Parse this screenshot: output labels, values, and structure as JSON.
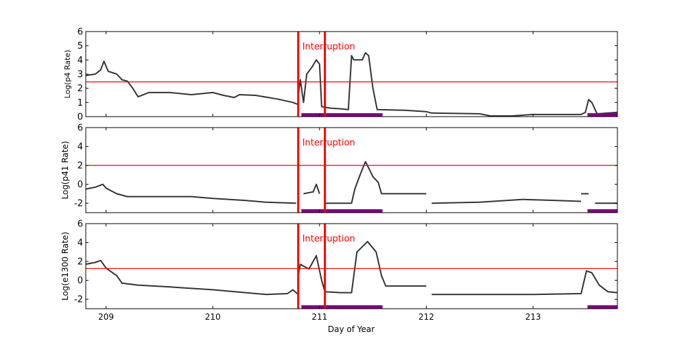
{
  "chart_data": {
    "type": "line",
    "xlabel": "Day of Year",
    "xlim": [
      208.81,
      213.79
    ],
    "xticks": [
      209,
      210,
      211,
      212,
      213
    ],
    "interruption": {
      "label": "Interruption",
      "x": [
        210.8,
        211.05
      ],
      "color": "#ff0000"
    },
    "bands": [
      [
        210.83,
        211.59
      ],
      [
        213.51,
        213.79
      ]
    ],
    "band_color": "#800080",
    "line_color": "#000000",
    "threshold_color": "#ff0000",
    "panels": [
      {
        "ylabel": "Log(p4 Rate)",
        "ylim": [
          0,
          6
        ],
        "yticks": [
          0,
          1,
          2,
          3,
          4,
          5,
          6
        ],
        "threshold": 2.45,
        "segments": [
          [
            [
              208.81,
              2.9
            ],
            [
              208.9,
              3.0
            ],
            [
              208.95,
              3.3
            ],
            [
              208.98,
              3.9
            ],
            [
              209.02,
              3.2
            ],
            [
              209.1,
              3.0
            ],
            [
              209.15,
              2.6
            ],
            [
              209.2,
              2.5
            ],
            [
              209.25,
              2.0
            ],
            [
              209.3,
              1.4
            ],
            [
              209.4,
              1.7
            ],
            [
              209.6,
              1.7
            ],
            [
              209.8,
              1.55
            ],
            [
              210.0,
              1.7
            ],
            [
              210.1,
              1.5
            ],
            [
              210.2,
              1.35
            ],
            [
              210.25,
              1.55
            ],
            [
              210.4,
              1.5
            ],
            [
              210.6,
              1.25
            ],
            [
              210.75,
              1.0
            ],
            [
              210.8,
              0.85
            ]
          ],
          [
            [
              210.8,
              1.5
            ],
            [
              210.82,
              2.6
            ],
            [
              210.85,
              1.0
            ],
            [
              210.88,
              3.0
            ],
            [
              210.93,
              3.5
            ],
            [
              210.97,
              4.0
            ],
            [
              211.0,
              3.7
            ],
            [
              211.02,
              0.7
            ],
            [
              211.1,
              0.6
            ],
            [
              211.2,
              0.55
            ],
            [
              211.27,
              0.5
            ],
            [
              211.3,
              4.3
            ],
            [
              211.32,
              4.0
            ],
            [
              211.4,
              4.0
            ],
            [
              211.43,
              4.5
            ],
            [
              211.46,
              4.3
            ],
            [
              211.5,
              2.0
            ],
            [
              211.54,
              0.5
            ],
            [
              211.8,
              0.45
            ],
            [
              212.0,
              0.35
            ],
            [
              212.05,
              0.25
            ],
            [
              212.5,
              0.2
            ],
            [
              212.6,
              0.05
            ],
            [
              212.8,
              0.05
            ],
            [
              213.0,
              0.15
            ],
            [
              213.45,
              0.15
            ],
            [
              213.49,
              0.3
            ],
            [
              213.52,
              1.2
            ],
            [
              213.55,
              1.0
            ],
            [
              213.6,
              0.2
            ],
            [
              213.79,
              0.3
            ]
          ]
        ]
      },
      {
        "ylabel": "Log(p41 Rate)",
        "ylim": [
          -3,
          6
        ],
        "yticks": [
          -2,
          0,
          2,
          4,
          6
        ],
        "threshold": 2,
        "segments": [
          [
            [
              208.81,
              -0.5
            ],
            [
              208.9,
              -0.3
            ],
            [
              208.97,
              0.0
            ],
            [
              209.0,
              -0.4
            ],
            [
              209.1,
              -1.0
            ],
            [
              209.2,
              -1.3
            ],
            [
              209.5,
              -1.3
            ],
            [
              209.8,
              -1.3
            ],
            [
              210.0,
              -1.5
            ],
            [
              210.3,
              -1.7
            ],
            [
              210.5,
              -1.9
            ],
            [
              210.78,
              -2.0
            ]
          ],
          [
            [
              210.85,
              -1.0
            ],
            [
              210.94,
              -0.8
            ],
            [
              210.97,
              0.0
            ],
            [
              211.0,
              -1.0
            ]
          ],
          [
            [
              211.05,
              -2.0
            ],
            [
              211.3,
              -2.0
            ],
            [
              211.33,
              -0.5
            ],
            [
              211.38,
              1.0
            ],
            [
              211.43,
              2.4
            ],
            [
              211.47,
              1.5
            ],
            [
              211.5,
              0.8
            ],
            [
              211.55,
              0.2
            ],
            [
              211.58,
              -1.0
            ],
            [
              212.0,
              -1.0
            ]
          ],
          [
            [
              212.05,
              -2.0
            ],
            [
              212.5,
              -1.9
            ],
            [
              212.9,
              -1.6
            ],
            [
              213.2,
              -1.7
            ],
            [
              213.45,
              -1.8
            ]
          ],
          [
            [
              213.45,
              -1.0
            ],
            [
              213.52,
              -1.0
            ]
          ],
          [
            [
              213.58,
              -2.0
            ],
            [
              213.79,
              -2.0
            ]
          ]
        ]
      },
      {
        "ylabel": "Log(e1300 Rate)",
        "ylim": [
          -3,
          6
        ],
        "yticks": [
          -2,
          0,
          2,
          4,
          6
        ],
        "threshold": 1.25,
        "segments": [
          [
            [
              208.81,
              1.7
            ],
            [
              208.9,
              1.9
            ],
            [
              208.95,
              2.1
            ],
            [
              209.0,
              1.3
            ],
            [
              209.1,
              0.5
            ],
            [
              209.15,
              -0.3
            ],
            [
              209.3,
              -0.5
            ],
            [
              209.6,
              -0.7
            ],
            [
              210.0,
              -1.0
            ],
            [
              210.5,
              -1.5
            ],
            [
              210.7,
              -1.4
            ],
            [
              210.75,
              -1.0
            ],
            [
              210.8,
              -1.5
            ]
          ],
          [
            [
              210.8,
              0.5
            ],
            [
              210.82,
              1.7
            ],
            [
              210.9,
              1.2
            ],
            [
              210.97,
              2.6
            ],
            [
              211.02,
              0.0
            ],
            [
              211.05,
              -1.2
            ],
            [
              211.2,
              -1.3
            ],
            [
              211.3,
              -1.3
            ],
            [
              211.35,
              3.0
            ],
            [
              211.45,
              4.1
            ],
            [
              211.53,
              3.0
            ],
            [
              211.58,
              0.5
            ],
            [
              211.62,
              -0.6
            ],
            [
              212.0,
              -0.6
            ]
          ],
          [
            [
              212.05,
              -1.5
            ],
            [
              212.5,
              -1.5
            ],
            [
              213.0,
              -1.5
            ],
            [
              213.45,
              -1.4
            ],
            [
              213.5,
              1.0
            ],
            [
              213.55,
              0.8
            ],
            [
              213.62,
              -0.5
            ],
            [
              213.7,
              -1.2
            ],
            [
              213.79,
              -1.3
            ]
          ]
        ]
      }
    ]
  }
}
